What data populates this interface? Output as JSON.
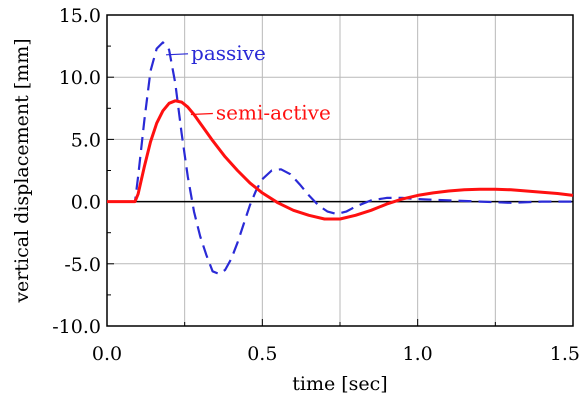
{
  "chart_data": {
    "type": "line",
    "xlabel": "time [sec]",
    "ylabel": "vertical displacement [mm]",
    "xlim": [
      0.0,
      1.5
    ],
    "ylim": [
      -10.0,
      15.0
    ],
    "x_ticks": [
      0.0,
      0.5,
      1.0,
      1.5
    ],
    "x_tick_labels": [
      "0.0",
      "0.5",
      "1.0",
      "1.5"
    ],
    "y_ticks": [
      -10.0,
      -5.0,
      0.0,
      5.0,
      10.0,
      15.0
    ],
    "y_tick_labels": [
      "-10.0",
      "-5.0",
      "0.0",
      "5.0",
      "10.0",
      "15.0"
    ],
    "grid": true,
    "series": [
      {
        "name": "passive",
        "color": "#2a2ad6",
        "dash": "dashed",
        "x": [
          0.0,
          0.09,
          0.1,
          0.12,
          0.14,
          0.16,
          0.18,
          0.2,
          0.22,
          0.24,
          0.26,
          0.28,
          0.3,
          0.32,
          0.34,
          0.36,
          0.38,
          0.4,
          0.42,
          0.44,
          0.46,
          0.48,
          0.5,
          0.53,
          0.56,
          0.59,
          0.62,
          0.65,
          0.68,
          0.71,
          0.74,
          0.77,
          0.8,
          0.85,
          0.9,
          0.95,
          1.0,
          1.1,
          1.2,
          1.3,
          1.4,
          1.5
        ],
        "y": [
          0.0,
          0.0,
          2.0,
          6.5,
          10.5,
          12.3,
          12.8,
          12.2,
          9.5,
          5.5,
          2.0,
          -0.8,
          -2.8,
          -4.3,
          -5.6,
          -5.8,
          -5.5,
          -4.6,
          -3.3,
          -1.8,
          -0.3,
          0.9,
          1.8,
          2.5,
          2.6,
          2.2,
          1.4,
          0.5,
          -0.3,
          -0.8,
          -1.0,
          -0.8,
          -0.4,
          0.1,
          0.3,
          0.3,
          0.2,
          0.1,
          0.0,
          -0.1,
          0.0,
          0.0
        ]
      },
      {
        "name": "semi-active",
        "color": "#ff1010",
        "dash": "solid",
        "x": [
          0.0,
          0.09,
          0.1,
          0.12,
          0.14,
          0.16,
          0.18,
          0.2,
          0.22,
          0.24,
          0.26,
          0.28,
          0.3,
          0.34,
          0.38,
          0.42,
          0.46,
          0.5,
          0.55,
          0.6,
          0.65,
          0.7,
          0.75,
          0.8,
          0.85,
          0.9,
          0.95,
          1.0,
          1.05,
          1.1,
          1.15,
          1.2,
          1.25,
          1.3,
          1.35,
          1.4,
          1.45,
          1.5
        ],
        "y": [
          0.0,
          0.0,
          0.6,
          2.8,
          4.8,
          6.3,
          7.3,
          7.9,
          8.1,
          8.0,
          7.6,
          7.0,
          6.3,
          4.9,
          3.6,
          2.5,
          1.5,
          0.7,
          -0.1,
          -0.7,
          -1.1,
          -1.4,
          -1.4,
          -1.1,
          -0.7,
          -0.2,
          0.2,
          0.5,
          0.7,
          0.85,
          0.95,
          1.0,
          1.0,
          0.95,
          0.85,
          0.75,
          0.65,
          0.5
        ]
      }
    ],
    "annotations": [
      {
        "text": "passive",
        "series": "passive",
        "anchor": [
          0.19,
          11.8
        ]
      },
      {
        "text": "semi-active",
        "series": "semi-active",
        "anchor": [
          0.27,
          7.0
        ]
      }
    ]
  }
}
